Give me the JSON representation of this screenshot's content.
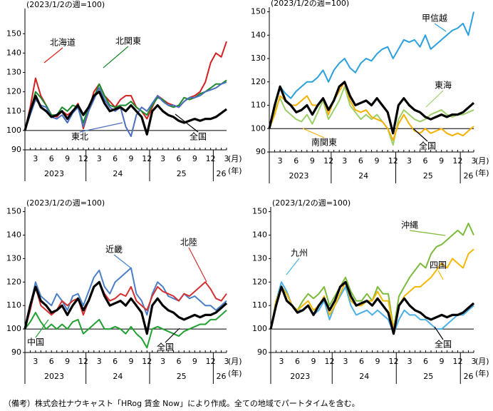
{
  "chart_data": [
    {
      "type": "line",
      "ylabel": "(2023/1/2の週=100)",
      "x_unit": "(月)",
      "year_unit": "(年)",
      "categories": [
        null,
        null,
        "3",
        null,
        null,
        "6",
        null,
        null,
        "9",
        null,
        null,
        "12",
        null,
        null,
        "3",
        null,
        null,
        "6",
        null,
        null,
        "9",
        null,
        null,
        "12",
        null,
        null,
        "3",
        null,
        null,
        "6",
        null,
        null,
        "9",
        null,
        null,
        "12",
        null,
        null,
        "3"
      ],
      "year_labels": [
        "2023",
        "24",
        "25",
        "26"
      ],
      "ylim": [
        90,
        163
      ],
      "yticks": [
        90,
        100,
        110,
        120,
        130,
        140,
        150
      ],
      "baseline": 100,
      "series": [
        {
          "name": "北海道",
          "color": "#d42020",
          "values": [
            100,
            112,
            127,
            118,
            113,
            108,
            107,
            110,
            108,
            110,
            114,
            101,
            110,
            120,
            124,
            118,
            115,
            112,
            116,
            118,
            118,
            112,
            110,
            106,
            112,
            118,
            116,
            114,
            113,
            112,
            115,
            117,
            118,
            120,
            125,
            135,
            140,
            138,
            146
          ]
        },
        {
          "name": "北関東",
          "color": "#1a8a2a",
          "values": [
            100,
            110,
            120,
            117,
            113,
            108,
            108,
            112,
            110,
            113,
            112,
            104,
            112,
            117,
            124,
            118,
            113,
            112,
            113,
            113,
            115,
            112,
            110,
            108,
            113,
            117,
            116,
            113,
            112,
            113,
            117,
            116,
            117,
            119,
            120,
            122,
            124,
            124,
            126
          ]
        },
        {
          "name": "東北",
          "color": "#4a6fc0",
          "values": [
            100,
            108,
            116,
            113,
            112,
            107,
            106,
            108,
            104,
            109,
            112,
            102,
            110,
            116,
            122,
            116,
            112,
            110,
            112,
            102,
            97,
            108,
            112,
            110,
            114,
            118,
            115,
            113,
            113,
            112,
            115,
            117,
            117,
            118,
            120,
            121,
            122,
            124,
            125
          ]
        },
        {
          "name": "全国",
          "color": "#000000",
          "values": [
            100,
            110,
            118,
            112,
            110,
            107,
            108,
            110,
            106,
            110,
            113,
            108,
            112,
            118,
            120,
            114,
            110,
            111,
            112,
            110,
            113,
            110,
            107,
            98,
            110,
            113,
            110,
            108,
            107,
            105,
            104,
            105,
            106,
            105,
            106,
            106,
            107,
            109,
            111
          ]
        }
      ]
    },
    {
      "type": "line",
      "ylabel": "(2023/1/2の週=100)",
      "x_unit": "(月)",
      "year_unit": "(年)",
      "categories": [
        null,
        null,
        "3",
        null,
        null,
        "6",
        null,
        null,
        "9",
        null,
        null,
        "12",
        null,
        null,
        "3",
        null,
        null,
        "6",
        null,
        null,
        "9",
        null,
        null,
        "12",
        null,
        null,
        "3",
        null,
        null,
        "6",
        null,
        null,
        "9",
        null,
        null,
        "12",
        null,
        null,
        "3"
      ],
      "year_labels": [
        "2023",
        "24",
        "25",
        "26"
      ],
      "ylim": [
        90,
        152
      ],
      "yticks": [
        90,
        100,
        110,
        120,
        130,
        140,
        150
      ],
      "baseline": 100,
      "series": [
        {
          "name": "甲信越",
          "color": "#2aa0dc",
          "values": [
            100,
            110,
            118,
            115,
            113,
            116,
            118,
            120,
            120,
            122,
            125,
            120,
            125,
            128,
            130,
            126,
            124,
            128,
            130,
            129,
            132,
            134,
            135,
            130,
            134,
            138,
            137,
            138,
            135,
            140,
            134,
            136,
            138,
            140,
            142,
            143,
            145,
            140,
            150
          ]
        },
        {
          "name": "東海",
          "color": "#9ccf6a",
          "values": [
            100,
            108,
            113,
            108,
            106,
            104,
            103,
            106,
            102,
            107,
            112,
            104,
            108,
            112,
            118,
            110,
            107,
            104,
            106,
            104,
            106,
            103,
            100,
            93,
            104,
            108,
            106,
            104,
            103,
            104,
            106,
            107,
            108,
            106,
            105,
            106,
            106,
            107,
            108
          ]
        },
        {
          "name": "南関東",
          "color": "#f5b000",
          "values": [
            100,
            106,
            114,
            112,
            110,
            110,
            112,
            114,
            110,
            110,
            113,
            106,
            112,
            116,
            120,
            112,
            108,
            107,
            108,
            105,
            104,
            103,
            100,
            95,
            102,
            106,
            102,
            99,
            98,
            100,
            98,
            99,
            100,
            98,
            97,
            98,
            97,
            99,
            101
          ]
        },
        {
          "name": "全国",
          "color": "#000000",
          "values": [
            100,
            110,
            118,
            112,
            110,
            107,
            108,
            110,
            106,
            110,
            113,
            108,
            112,
            118,
            120,
            114,
            110,
            111,
            112,
            110,
            113,
            110,
            107,
            98,
            110,
            113,
            110,
            108,
            107,
            105,
            104,
            105,
            106,
            105,
            106,
            106,
            107,
            109,
            111
          ]
        }
      ]
    },
    {
      "type": "line",
      "ylabel": "(2023/1/2の週=100)",
      "x_unit": "(月)",
      "year_unit": "(年)",
      "categories": [
        null,
        null,
        "3",
        null,
        null,
        "6",
        null,
        null,
        "9",
        null,
        null,
        "12",
        null,
        null,
        "3",
        null,
        null,
        "6",
        null,
        null,
        "9",
        null,
        null,
        "12",
        null,
        null,
        "3",
        null,
        null,
        "6",
        null,
        null,
        "9",
        null,
        null,
        "12",
        null,
        null,
        "3"
      ],
      "year_labels": [
        "2023",
        "24",
        "25",
        "26"
      ],
      "ylim": [
        90,
        152
      ],
      "yticks": [
        90,
        100,
        110,
        120,
        130,
        140,
        150
      ],
      "baseline": 100,
      "series": [
        {
          "name": "近畿",
          "color": "#4a7fc8",
          "values": [
            100,
            110,
            120,
            114,
            112,
            110,
            115,
            112,
            108,
            114,
            115,
            110,
            116,
            122,
            125,
            118,
            115,
            120,
            122,
            124,
            126,
            115,
            112,
            106,
            115,
            120,
            118,
            114,
            113,
            112,
            115,
            113,
            114,
            112,
            110,
            110,
            108,
            110,
            112
          ]
        },
        {
          "name": "北陸",
          "color": "#d43030",
          "values": [
            100,
            108,
            118,
            110,
            108,
            106,
            108,
            112,
            110,
            112,
            113,
            106,
            112,
            118,
            120,
            115,
            112,
            113,
            115,
            114,
            118,
            112,
            110,
            108,
            114,
            118,
            116,
            115,
            114,
            112,
            115,
            114,
            116,
            118,
            120,
            117,
            113,
            112,
            115
          ]
        },
        {
          "name": "中国",
          "color": "#20a030",
          "values": [
            100,
            103,
            107,
            103,
            100,
            102,
            100,
            102,
            100,
            103,
            104,
            98,
            100,
            102,
            104,
            100,
            100,
            101,
            100,
            98,
            101,
            98,
            96,
            92,
            100,
            101,
            100,
            99,
            98,
            97,
            99,
            100,
            101,
            102,
            102,
            104,
            104,
            106,
            108
          ]
        },
        {
          "name": "全国",
          "color": "#000000",
          "values": [
            100,
            110,
            118,
            112,
            110,
            107,
            108,
            110,
            106,
            110,
            113,
            108,
            112,
            118,
            120,
            114,
            110,
            111,
            112,
            110,
            113,
            110,
            107,
            98,
            110,
            113,
            110,
            108,
            107,
            105,
            104,
            105,
            106,
            105,
            106,
            106,
            107,
            109,
            111
          ]
        }
      ]
    },
    {
      "type": "line",
      "ylabel": "(2023/1/2の週=100)",
      "x_unit": "(月)",
      "year_unit": "(年)",
      "categories": [
        null,
        null,
        "3",
        null,
        null,
        "6",
        null,
        null,
        "9",
        null,
        null,
        "12",
        null,
        null,
        "3",
        null,
        null,
        "6",
        null,
        null,
        "9",
        null,
        null,
        "12",
        null,
        null,
        "3",
        null,
        null,
        "6",
        null,
        null,
        "9",
        null,
        null,
        "12",
        null,
        null,
        "3"
      ],
      "year_labels": [
        "2023",
        "24",
        "25",
        "26"
      ],
      "ylim": [
        90,
        152
      ],
      "yticks": [
        90,
        100,
        110,
        120,
        130,
        140,
        150
      ],
      "baseline": 100,
      "series": [
        {
          "name": "沖縄",
          "color": "#7cba3a",
          "values": [
            100,
            110,
            118,
            115,
            110,
            108,
            112,
            115,
            113,
            115,
            118,
            110,
            114,
            118,
            122,
            116,
            112,
            112,
            115,
            112,
            118,
            115,
            115,
            100,
            114,
            118,
            122,
            125,
            128,
            126,
            132,
            135,
            136,
            138,
            140,
            142,
            140,
            145,
            140
          ]
        },
        {
          "name": "九州",
          "color": "#4ab0e6",
          "values": [
            100,
            112,
            120,
            116,
            110,
            108,
            108,
            110,
            106,
            108,
            112,
            104,
            110,
            114,
            118,
            110,
            106,
            107,
            108,
            106,
            108,
            106,
            104,
            98,
            104,
            108,
            106,
            106,
            104,
            104,
            102,
            100,
            100,
            102,
            104,
            106,
            106,
            108,
            110
          ]
        },
        {
          "name": "四国",
          "color": "#f5b800",
          "values": [
            100,
            112,
            118,
            115,
            110,
            108,
            110,
            112,
            108,
            110,
            114,
            106,
            110,
            115,
            120,
            112,
            110,
            110,
            112,
            112,
            116,
            112,
            112,
            100,
            110,
            114,
            116,
            118,
            118,
            120,
            122,
            125,
            128,
            126,
            130,
            128,
            126,
            132,
            134
          ]
        },
        {
          "name": "全国",
          "color": "#000000",
          "values": [
            100,
            110,
            118,
            112,
            110,
            107,
            108,
            110,
            106,
            110,
            113,
            108,
            112,
            118,
            120,
            114,
            110,
            111,
            112,
            110,
            113,
            110,
            107,
            98,
            110,
            113,
            110,
            108,
            107,
            105,
            104,
            105,
            106,
            105,
            106,
            106,
            107,
            109,
            111
          ]
        }
      ]
    }
  ],
  "footnote": "（備考）株式会社ナウキャスト「HRog 賃金 Now」により作成。全ての地域でパートタイムを含む。"
}
